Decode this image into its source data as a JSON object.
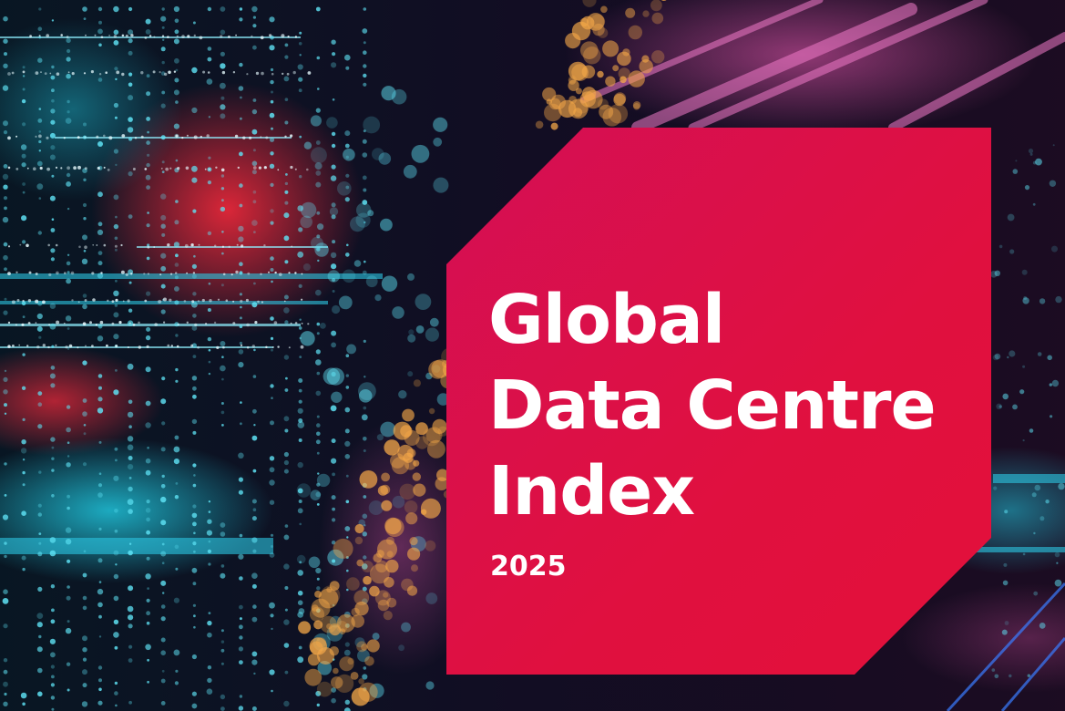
{
  "cover": {
    "title_lines": [
      "Global",
      "Data Centre",
      "Index"
    ],
    "year": "2025"
  },
  "colors": {
    "panel": "#e0103f",
    "panel_light": "#d40f55",
    "text": "#ffffff",
    "bg_dark": "#05070f",
    "accent_cyan": "#1fc8e6",
    "accent_orange": "#f2a03a",
    "accent_pink": "#e0489a"
  }
}
